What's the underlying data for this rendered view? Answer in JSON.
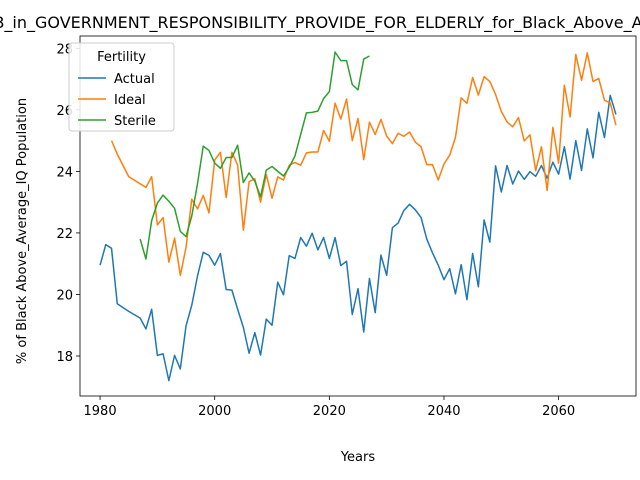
{
  "chart_data": {
    "type": "line",
    "title": "B_in_GOVERNMENT_RESPONSIBILITY_PROVIDE_FOR_ELDERLY_for_Black_Above_Average_IQ",
    "xlabel": "Years",
    "ylabel": "% of Black Above_Average_IQ Population",
    "xlim": [
      1976.5,
      2073.5
    ],
    "ylim": [
      16.7,
      28.4
    ],
    "xticks": [
      1980,
      2000,
      2020,
      2040,
      2060
    ],
    "yticks": [
      18,
      20,
      22,
      24,
      26,
      28
    ],
    "legend": {
      "title": "Fertility",
      "placement": "top-left"
    },
    "grid": false,
    "series": [
      {
        "name": "Actual",
        "color": "#1f77b4",
        "x": [
          1980,
          1981,
          1982,
          1983,
          1985,
          1987,
          1988,
          1989,
          1990,
          1991,
          1992,
          1993,
          1994,
          1995,
          1996,
          1997,
          1998,
          1999,
          2000,
          2001,
          2002,
          2003,
          2004,
          2005,
          2006,
          2007,
          2008,
          2009,
          2010,
          2011,
          2012,
          2013,
          2014,
          2015,
          2016,
          2017,
          2018,
          2019,
          2020,
          2021,
          2022,
          2023,
          2024,
          2025,
          2026,
          2027,
          2028,
          2029,
          2030,
          2031,
          2032,
          2033,
          2034,
          2035,
          2036,
          2037,
          2038,
          2039,
          2040,
          2041,
          2042,
          2043,
          2044,
          2045,
          2046,
          2047,
          2048,
          2049,
          2050,
          2051,
          2052,
          2053,
          2054,
          2055,
          2056,
          2057,
          2058,
          2059,
          2060,
          2061,
          2062,
          2063,
          2064,
          2065,
          2066,
          2067,
          2068,
          2069,
          2070
        ],
        "values": [
          20.95,
          21.62,
          21.5,
          19.7,
          19.45,
          19.23,
          18.88,
          19.52,
          18.02,
          18.07,
          17.2,
          18.02,
          17.58,
          18.98,
          19.65,
          20.6,
          21.37,
          21.27,
          20.95,
          21.33,
          20.16,
          20.14,
          19.52,
          18.93,
          18.09,
          18.76,
          18.03,
          19.2,
          19.0,
          20.4,
          19.99,
          21.26,
          21.17,
          21.85,
          21.57,
          21.99,
          21.45,
          21.85,
          21.17,
          21.85,
          20.94,
          21.08,
          19.35,
          20.19,
          18.78,
          20.52,
          19.41,
          21.28,
          20.62,
          22.17,
          22.32,
          22.73,
          22.93,
          22.75,
          22.5,
          21.8,
          21.35,
          20.95,
          20.48,
          20.84,
          20.02,
          20.97,
          19.83,
          21.33,
          20.25,
          22.42,
          21.7,
          24.18,
          23.33,
          24.19,
          23.59,
          24.01,
          23.74,
          23.99,
          23.84,
          24.19,
          23.78,
          24.3,
          23.91,
          24.8,
          23.75,
          25.0,
          24.03,
          25.38,
          24.44,
          25.92,
          25.1,
          26.47,
          25.85
        ]
      },
      {
        "name": "Ideal",
        "color": "#ff7f0e",
        "x": [
          1982,
          1983,
          1985,
          1988,
          1989,
          1990,
          1991,
          1992,
          1993,
          1994,
          1995,
          1996,
          1997,
          1998,
          1999,
          2000,
          2001,
          2002,
          2003,
          2004,
          2005,
          2006,
          2007,
          2008,
          2009,
          2010,
          2011,
          2012,
          2013,
          2014,
          2015,
          2016,
          2017,
          2018,
          2019,
          2020,
          2021,
          2022,
          2023,
          2024,
          2025,
          2026,
          2027,
          2028,
          2029,
          2030,
          2031,
          2032,
          2033,
          2034,
          2035,
          2036,
          2037,
          2038,
          2039,
          2040,
          2041,
          2042,
          2043,
          2044,
          2045,
          2046,
          2047,
          2048,
          2049,
          2050,
          2051,
          2052,
          2053,
          2054,
          2055,
          2056,
          2057,
          2058,
          2059,
          2060,
          2061,
          2062,
          2063,
          2064,
          2065,
          2066,
          2067,
          2068,
          2069,
          2070
        ],
        "values": [
          25.0,
          24.56,
          23.83,
          23.48,
          23.83,
          22.26,
          22.5,
          21.05,
          21.83,
          20.62,
          21.53,
          23.1,
          22.78,
          23.22,
          22.65,
          24.37,
          24.62,
          23.15,
          24.62,
          24.21,
          22.09,
          23.67,
          23.76,
          23.0,
          23.9,
          23.13,
          23.82,
          23.72,
          24.2,
          24.29,
          24.2,
          24.6,
          24.63,
          24.63,
          25.33,
          24.98,
          26.22,
          25.7,
          26.35,
          25.0,
          25.72,
          24.38,
          25.6,
          25.2,
          25.69,
          25.15,
          24.9,
          25.24,
          25.14,
          25.28,
          24.95,
          24.8,
          24.22,
          24.22,
          23.72,
          24.24,
          24.53,
          25.1,
          26.39,
          26.21,
          27.05,
          26.48,
          27.08,
          26.92,
          26.5,
          25.95,
          25.61,
          25.45,
          25.75,
          24.99,
          25.19,
          24.02,
          24.8,
          23.38,
          25.43,
          24.27,
          26.8,
          25.77,
          27.8,
          26.96,
          27.85,
          26.92,
          27.02,
          26.31,
          26.23,
          25.5
        ]
      },
      {
        "name": "Sterile",
        "color": "#2ca02c",
        "x": [
          1987,
          1988,
          1989,
          1990,
          1991,
          1992,
          1993,
          1994,
          1995,
          1996,
          1997,
          1998,
          1999,
          2000,
          2001,
          2002,
          2003,
          2004,
          2005,
          2006,
          2007,
          2008,
          2009,
          2010,
          2011,
          2012,
          2013,
          2014,
          2015,
          2016,
          2017,
          2018,
          2019,
          2020,
          2021,
          2022,
          2023,
          2024,
          2025,
          2026,
          2027
        ],
        "values": [
          21.8,
          21.15,
          22.4,
          22.97,
          23.23,
          23.03,
          22.8,
          22.05,
          21.88,
          22.55,
          23.6,
          24.82,
          24.68,
          24.27,
          24.1,
          24.45,
          24.45,
          24.85,
          23.64,
          23.95,
          23.68,
          23.17,
          24.04,
          24.16,
          24.0,
          23.85,
          24.13,
          24.5,
          25.2,
          25.9,
          25.92,
          25.96,
          26.37,
          26.59,
          27.88,
          27.6,
          27.6,
          26.82,
          26.65,
          27.65,
          27.75
        ]
      }
    ]
  }
}
